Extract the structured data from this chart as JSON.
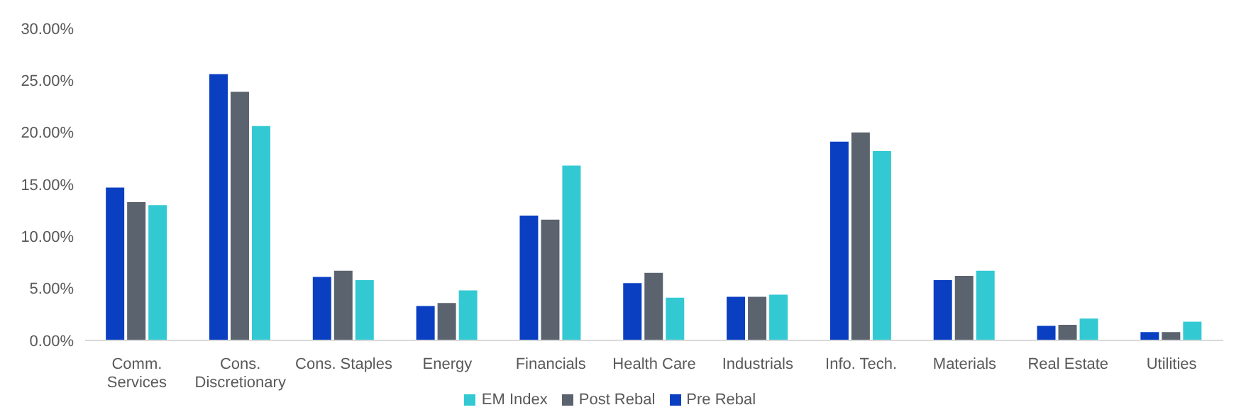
{
  "chart_data": {
    "type": "bar",
    "categories": [
      "Comm. Services",
      "Cons. Discretionary",
      "Cons. Staples",
      "Energy",
      "Financials",
      "Health Care",
      "Industrials",
      "Info. Tech.",
      "Materials",
      "Real Estate",
      "Utilities"
    ],
    "series": [
      {
        "name": "Pre Rebal",
        "color": "#0a3fc2",
        "values": [
          14.7,
          25.6,
          6.1,
          3.3,
          12.0,
          5.5,
          4.2,
          19.1,
          5.8,
          1.4,
          0.8
        ]
      },
      {
        "name": "Post Rebal",
        "color": "#5b636e",
        "values": [
          13.3,
          23.9,
          6.7,
          3.6,
          11.6,
          6.5,
          4.2,
          20.0,
          6.2,
          1.5,
          0.8
        ]
      },
      {
        "name": "EM Index",
        "color": "#33c9d3",
        "values": [
          13.0,
          20.6,
          5.8,
          4.8,
          16.8,
          4.1,
          4.4,
          18.2,
          6.7,
          2.1,
          1.8
        ]
      }
    ],
    "ylim": [
      0,
      30
    ],
    "yticks": [
      {
        "value": 0,
        "label": "0.00%"
      },
      {
        "value": 5,
        "label": "5.00%"
      },
      {
        "value": 10,
        "label": "10.00%"
      },
      {
        "value": 15,
        "label": "15.00%"
      },
      {
        "value": 20,
        "label": "20.00%"
      },
      {
        "value": 25,
        "label": "25.00%"
      },
      {
        "value": 30,
        "label": "30.00%"
      }
    ],
    "grid": false,
    "legend": "bottom"
  }
}
